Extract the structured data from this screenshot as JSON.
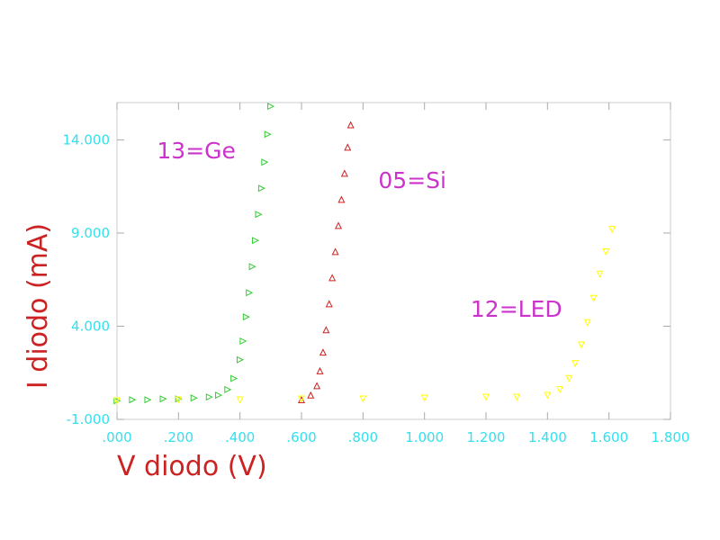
{
  "chart_data": {
    "type": "scatter",
    "xlabel": "V diodo (V)",
    "ylabel": "I diodo (mA)",
    "xlim": [
      0,
      1.8
    ],
    "ylim": [
      -1,
      16
    ],
    "x_ticks": [
      0,
      0.2,
      0.4,
      0.6,
      0.8,
      1.0,
      1.2,
      1.4,
      1.6,
      1.8
    ],
    "x_tick_labels": [
      ".000",
      ".200",
      ".400",
      ".600",
      ".800",
      "1.000",
      "1.200",
      "1.400",
      "1.600",
      "1.800"
    ],
    "y_ticks": [
      -1,
      4,
      9,
      14
    ],
    "y_tick_labels": [
      "-1.000",
      "4.000",
      "9.000",
      "14.000"
    ],
    "grid": false,
    "series": [
      {
        "name": "13=Ge",
        "label_position": [
          0.13,
          13
        ],
        "color": "#33cc33",
        "marker": "triangle-right",
        "x": [
          0.0,
          0.05,
          0.1,
          0.15,
          0.2,
          0.25,
          0.3,
          0.33,
          0.36,
          0.38,
          0.4,
          0.41,
          0.42,
          0.43,
          0.44,
          0.45,
          0.46,
          0.47,
          0.48,
          0.49,
          0.5
        ],
        "y": [
          0.0,
          0.05,
          0.05,
          0.1,
          0.1,
          0.15,
          0.2,
          0.3,
          0.6,
          1.2,
          2.2,
          3.2,
          4.5,
          5.8,
          7.2,
          8.6,
          10.0,
          11.4,
          12.8,
          14.3,
          15.8
        ]
      },
      {
        "name": "05=Si",
        "label_position": [
          0.85,
          11.4
        ],
        "color": "#cc2222",
        "marker": "triangle-up",
        "x": [
          0.6,
          0.63,
          0.65,
          0.66,
          0.67,
          0.68,
          0.69,
          0.7,
          0.71,
          0.72,
          0.73,
          0.74,
          0.75,
          0.76
        ],
        "y": [
          0.05,
          0.3,
          0.8,
          1.6,
          2.6,
          3.8,
          5.2,
          6.6,
          8.0,
          9.4,
          10.8,
          12.2,
          13.6,
          14.8
        ]
      },
      {
        "name": "12=LED",
        "label_position": [
          1.15,
          4.5
        ],
        "color": "#ffff00",
        "marker": "triangle-down",
        "x": [
          0.0,
          0.2,
          0.4,
          0.6,
          0.8,
          1.0,
          1.2,
          1.3,
          1.4,
          1.44,
          1.47,
          1.49,
          1.51,
          1.53,
          1.55,
          1.57,
          1.59,
          1.61
        ],
        "y": [
          0.0,
          0.05,
          0.05,
          0.1,
          0.1,
          0.15,
          0.2,
          0.2,
          0.3,
          0.6,
          1.2,
          2.0,
          3.0,
          4.2,
          5.5,
          6.8,
          8.0,
          9.2
        ]
      }
    ]
  }
}
